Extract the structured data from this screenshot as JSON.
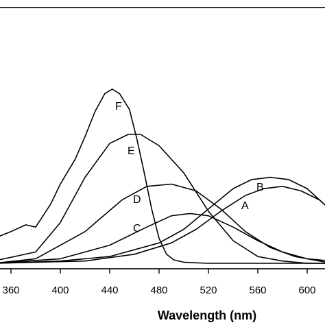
{
  "chart_data": {
    "type": "line",
    "title": "",
    "xlabel": "Wavelength (nm)",
    "ylabel": "",
    "xlim": [
      346,
      622
    ],
    "ylim": [
      0,
      1
    ],
    "x_ticks": [
      360,
      400,
      440,
      480,
      520,
      560,
      600
    ],
    "grid": false,
    "legend": "none",
    "line_color": "#000000",
    "series": [
      {
        "name": "F",
        "x": [
          346,
          360,
          372,
          380,
          392,
          400,
          412,
          420,
          428,
          436,
          442,
          448,
          456,
          462,
          468,
          474,
          480,
          486,
          492,
          500,
          510,
          520,
          560,
          620
        ],
        "y": [
          0.11,
          0.14,
          0.17,
          0.16,
          0.26,
          0.35,
          0.46,
          0.56,
          0.67,
          0.75,
          0.77,
          0.75,
          0.68,
          0.55,
          0.4,
          0.24,
          0.11,
          0.04,
          0.015,
          0.005,
          0.002,
          0.0,
          0.0,
          0.0
        ]
      },
      {
        "name": "E",
        "x": [
          346,
          380,
          400,
          420,
          440,
          455,
          465,
          480,
          500,
          520,
          540,
          560,
          580,
          600,
          620
        ],
        "y": [
          0.01,
          0.05,
          0.18,
          0.38,
          0.53,
          0.57,
          0.57,
          0.52,
          0.4,
          0.23,
          0.1,
          0.03,
          0.01,
          0.0,
          0.0
        ]
      },
      {
        "name": "D",
        "x": [
          346,
          380,
          420,
          450,
          470,
          490,
          510,
          530,
          550,
          570,
          590,
          610,
          620
        ],
        "y": [
          0.0,
          0.02,
          0.14,
          0.28,
          0.34,
          0.35,
          0.32,
          0.24,
          0.14,
          0.07,
          0.03,
          0.01,
          0.0
        ]
      },
      {
        "name": "C",
        "x": [
          346,
          400,
          440,
          470,
          490,
          505,
          520,
          540,
          560,
          580,
          600,
          620
        ],
        "y": [
          0.0,
          0.02,
          0.08,
          0.16,
          0.21,
          0.22,
          0.21,
          0.16,
          0.1,
          0.05,
          0.02,
          0.01
        ]
      },
      {
        "name": "B",
        "x": [
          346,
          400,
          440,
          480,
          500,
          520,
          540,
          555,
          570,
          585,
          600,
          610,
          622
        ],
        "y": [
          0.0,
          0.01,
          0.03,
          0.09,
          0.15,
          0.24,
          0.33,
          0.37,
          0.38,
          0.37,
          0.33,
          0.28,
          0.22
        ]
      },
      {
        "name": "A",
        "x": [
          346,
          420,
          460,
          490,
          510,
          530,
          550,
          565,
          580,
          595,
          610,
          622
        ],
        "y": [
          0.0,
          0.01,
          0.04,
          0.09,
          0.15,
          0.23,
          0.3,
          0.33,
          0.34,
          0.32,
          0.28,
          0.22
        ]
      }
    ]
  },
  "labels": {
    "x_ticks": [
      "360",
      "400",
      "440",
      "480",
      "520",
      "560",
      "600"
    ],
    "x_axis_title": "Wavelength (nm)",
    "curve_F": "F",
    "curve_E": "E",
    "curve_D": "D",
    "curve_C": "C",
    "curve_B": "B",
    "curve_A": "A"
  }
}
